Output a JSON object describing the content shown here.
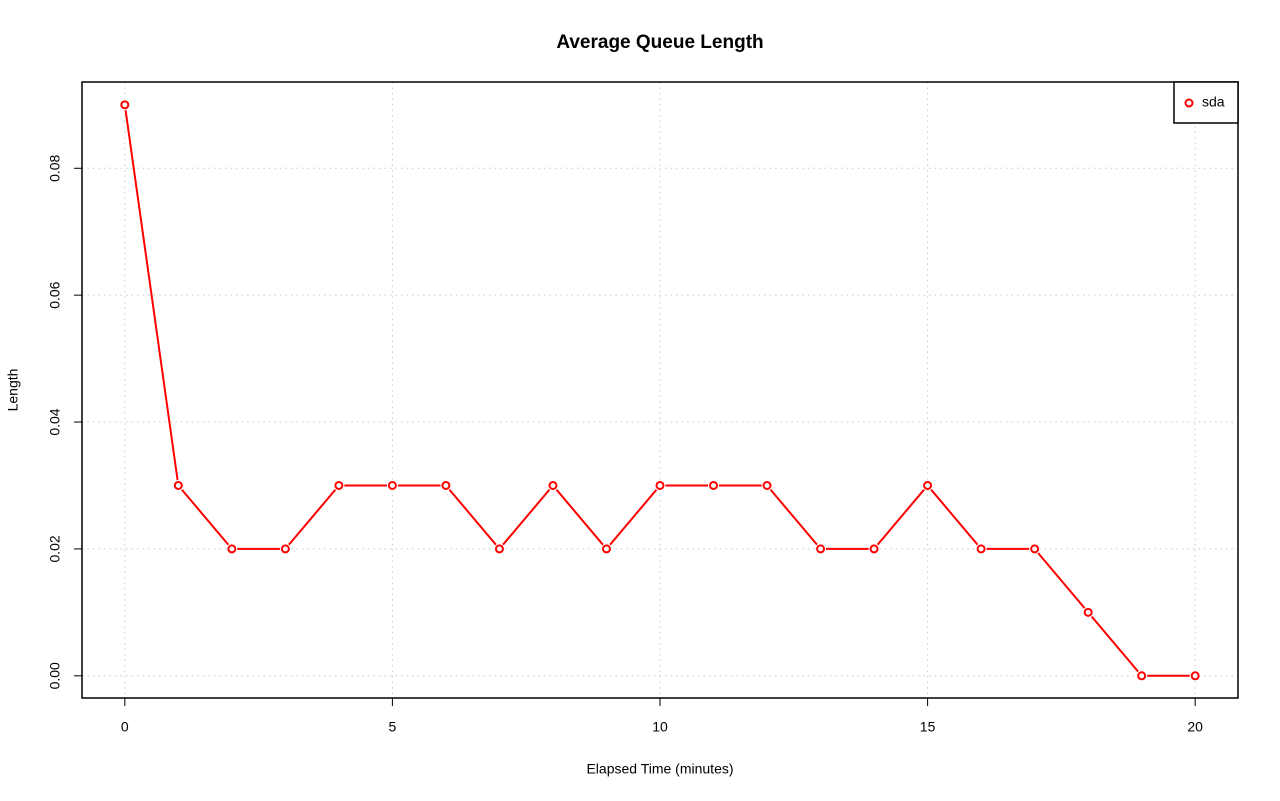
{
  "chart_data": {
    "type": "line",
    "title": "Average Queue Length",
    "x_label": "Elapsed Time (minutes)",
    "y_label": "Length",
    "x": [
      0,
      1,
      2,
      3,
      4,
      5,
      6,
      7,
      8,
      9,
      10,
      11,
      12,
      13,
      14,
      15,
      16,
      17,
      18,
      19,
      20
    ],
    "series": [
      {
        "name": "sda",
        "color": "#ff0000",
        "values": [
          0.09,
          0.03,
          0.02,
          0.02,
          0.03,
          0.03,
          0.03,
          0.02,
          0.03,
          0.02,
          0.03,
          0.03,
          0.03,
          0.02,
          0.02,
          0.03,
          0.02,
          0.02,
          0.01,
          0,
          0
        ]
      }
    ],
    "xlim": [
      -0.8,
      20.8
    ],
    "ylim": [
      -0.0035,
      0.0936
    ],
    "xticks": [
      0,
      5,
      10,
      15,
      20
    ],
    "yticks": [
      {
        "value": 0,
        "label": "0.00"
      },
      0.02,
      0.04,
      0.06,
      0.08
    ],
    "grid": true,
    "legend": "topright"
  }
}
